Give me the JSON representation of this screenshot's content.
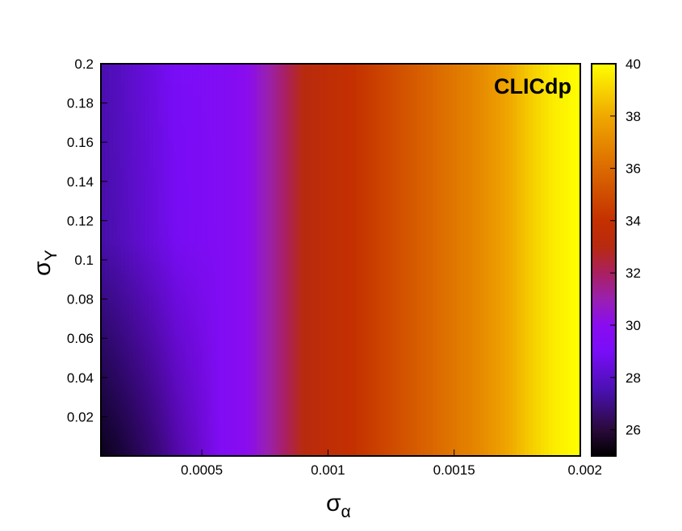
{
  "chart_data": {
    "type": "heatmap",
    "annotation": "CLICdp",
    "xlabel": {
      "symbol": "σ",
      "subscript": "α"
    },
    "ylabel": {
      "symbol": "σ",
      "subscript": "Y"
    },
    "xlim": [
      0.0001,
      0.002
    ],
    "ylim": [
      0.0,
      0.2
    ],
    "zlim": [
      25,
      40
    ],
    "x_ticks": [
      {
        "value": 0.0005,
        "label": "0.0005"
      },
      {
        "value": 0.001,
        "label": "0.001"
      },
      {
        "value": 0.0015,
        "label": "0.0015"
      },
      {
        "value": 0.002,
        "label": "0.002"
      }
    ],
    "y_ticks": [
      {
        "value": 0.02,
        "label": "0.02"
      },
      {
        "value": 0.04,
        "label": "0.04"
      },
      {
        "value": 0.06,
        "label": "0.06"
      },
      {
        "value": 0.08,
        "label": "0.08"
      },
      {
        "value": 0.1,
        "label": "0.1"
      },
      {
        "value": 0.12,
        "label": "0.12"
      },
      {
        "value": 0.14,
        "label": "0.14"
      },
      {
        "value": 0.16,
        "label": "0.16"
      },
      {
        "value": 0.18,
        "label": "0.18"
      },
      {
        "value": 0.2,
        "label": "0.2"
      }
    ],
    "z_ticks": [
      {
        "value": 26,
        "label": "26"
      },
      {
        "value": 28,
        "label": "28"
      },
      {
        "value": 30,
        "label": "30"
      },
      {
        "value": 32,
        "label": "32"
      },
      {
        "value": 34,
        "label": "34"
      },
      {
        "value": 36,
        "label": "36"
      },
      {
        "value": 38,
        "label": "38"
      },
      {
        "value": 40,
        "label": "40"
      }
    ],
    "grid": false,
    "colormap": [
      {
        "value": 25,
        "color": "#000000"
      },
      {
        "value": 26,
        "color": "#2a0a3a"
      },
      {
        "value": 27.5,
        "color": "#4a10b0"
      },
      {
        "value": 29,
        "color": "#7a0df8"
      },
      {
        "value": 30,
        "color": "#8a0cf0"
      },
      {
        "value": 31,
        "color": "#9a20b0"
      },
      {
        "value": 32,
        "color": "#aa2060"
      },
      {
        "value": 33,
        "color": "#b82a10"
      },
      {
        "value": 34,
        "color": "#c43000"
      },
      {
        "value": 36,
        "color": "#dc6a00"
      },
      {
        "value": 38,
        "color": "#f0a800"
      },
      {
        "value": 40,
        "color": "#ffff00"
      }
    ],
    "profile_along_x": {
      "note_values_constant_in_y": true,
      "x": [
        0.0001,
        0.0002,
        0.0003,
        0.0004,
        0.0005,
        0.0006,
        0.0007,
        0.0008,
        0.0009,
        0.001,
        0.0011,
        0.0012,
        0.0013,
        0.0014,
        0.0015,
        0.0016,
        0.0017,
        0.0018,
        0.0019,
        0.002
      ],
      "z": [
        27.5,
        28.0,
        28.5,
        29.0,
        29.3,
        29.5,
        30.2,
        31.5,
        33.0,
        33.6,
        34.0,
        34.6,
        35.2,
        35.8,
        36.4,
        37.0,
        37.8,
        38.8,
        39.6,
        40.0
      ]
    },
    "y_gradient": {
      "description_values": [
        {
          "y": 0.0,
          "z_offset_at_xmin": -2.5
        },
        {
          "y": 0.1,
          "z_offset_at_xmin": -1.0
        },
        {
          "y": 0.2,
          "z_offset_at_xmin": 0.0
        }
      ]
    }
  }
}
